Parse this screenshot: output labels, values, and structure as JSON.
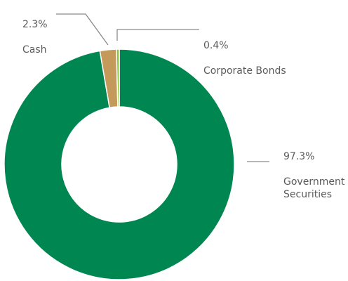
{
  "chart_data": {
    "type": "pie",
    "style": "donut",
    "categories": [
      "Government Securities",
      "Cash",
      "Corporate Bonds"
    ],
    "values": [
      97.3,
      2.3,
      0.4
    ],
    "value_labels": [
      "97.3%",
      "2.3%",
      "0.4%"
    ],
    "label_text": [
      "Government\nSecurities",
      "Cash",
      "Corporate Bonds"
    ],
    "colors": [
      "#008751",
      "#c49a5a",
      "#8fbf3f"
    ],
    "leader_color": "#8a8a8a",
    "label_color": "#5b5b5b"
  }
}
